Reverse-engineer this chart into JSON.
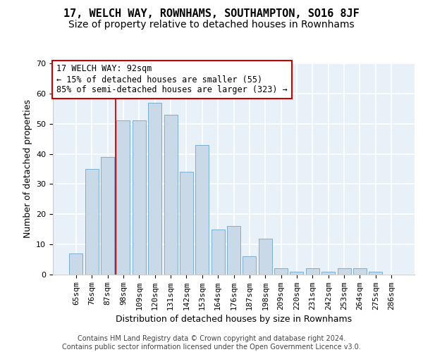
{
  "title": "17, WELCH WAY, ROWNHAMS, SOUTHAMPTON, SO16 8JF",
  "subtitle": "Size of property relative to detached houses in Rownhams",
  "xlabel": "Distribution of detached houses by size in Rownhams",
  "ylabel": "Number of detached properties",
  "bins": [
    "65sqm",
    "76sqm",
    "87sqm",
    "98sqm",
    "109sqm",
    "120sqm",
    "131sqm",
    "142sqm",
    "153sqm",
    "164sqm",
    "176sqm",
    "187sqm",
    "198sqm",
    "209sqm",
    "220sqm",
    "231sqm",
    "242sqm",
    "253sqm",
    "264sqm",
    "275sqm",
    "286sqm"
  ],
  "values": [
    7,
    35,
    39,
    51,
    51,
    57,
    53,
    34,
    43,
    15,
    16,
    6,
    12,
    2,
    1,
    2,
    1,
    2,
    2,
    1,
    0
  ],
  "bar_color": "#c9d9e8",
  "bar_edge_color": "#7bafd4",
  "background_color": "#e8f0f8",
  "grid_color": "#ffffff",
  "annotation_line1": "17 WELCH WAY: 92sqm",
  "annotation_line2": "← 15% of detached houses are smaller (55)",
  "annotation_line3": "85% of semi-detached houses are larger (323) →",
  "annotation_box_color": "#ffffff",
  "annotation_box_edge_color": "#cc0000",
  "vline_color": "#cc0000",
  "vline_x_index": 2.5,
  "ylim": [
    0,
    70
  ],
  "yticks": [
    0,
    10,
    20,
    30,
    40,
    50,
    60,
    70
  ],
  "footer_line1": "Contains HM Land Registry data © Crown copyright and database right 2024.",
  "footer_line2": "Contains public sector information licensed under the Open Government Licence v3.0.",
  "title_fontsize": 11,
  "subtitle_fontsize": 10,
  "xlabel_fontsize": 9,
  "ylabel_fontsize": 9,
  "tick_fontsize": 8,
  "footer_fontsize": 7,
  "annotation_fontsize": 8.5
}
